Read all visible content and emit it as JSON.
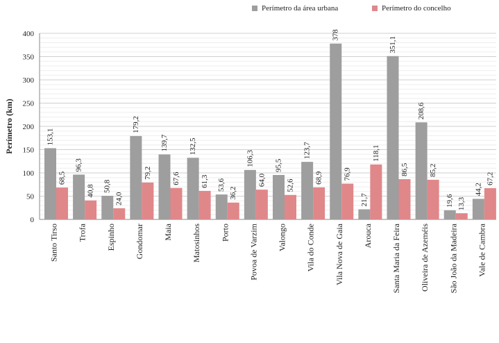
{
  "chart_data": {
    "type": "bar",
    "ylabel": "Perímetro (km)",
    "ylim": [
      0,
      400
    ],
    "yticks": [
      0,
      50,
      100,
      150,
      200,
      250,
      300,
      350,
      400
    ],
    "grid": true,
    "legend_position": "top-right",
    "categories": [
      "Santo Tirso",
      "Trofa",
      "Espinho",
      "Gondomar",
      "Maia",
      "Matosinhos",
      "Porto",
      "Povoa de Varzim",
      "Valongo",
      "Vila do Conde",
      "Vila Nova de Gaia",
      "Arouca",
      "Santa Maria da Feira",
      "Oliveira de Azeméis",
      "São João da Madeira",
      "Vale de Cambra"
    ],
    "series": [
      {
        "name": "Perímetro da área urbana",
        "color": "#9e9e9e",
        "values": [
          153.1,
          96.3,
          50.8,
          179.2,
          139.7,
          132.5,
          53.6,
          106.3,
          95.5,
          123.7,
          378,
          21.7,
          351.1,
          208.6,
          19.6,
          44.2
        ],
        "labels": [
          "153,1",
          "96,3",
          "50,8",
          "179,2",
          "139,7",
          "132,5",
          "53,6",
          "106,3",
          "95,5",
          "123,7",
          "378",
          "21,7",
          "351,1",
          "208,6",
          "19,6",
          "44,2"
        ]
      },
      {
        "name": "Perímetro do concelho",
        "color": "#e0878a",
        "values": [
          68.5,
          40.8,
          24.0,
          79.2,
          67.6,
          61.3,
          36.2,
          64.0,
          52.6,
          68.9,
          76.9,
          118.1,
          86.5,
          85.2,
          13.3,
          67.2
        ],
        "labels": [
          "68,5",
          "40,8",
          "24,0",
          "79,2",
          "67,6",
          "61,3",
          "36,2",
          "64,0",
          "52,6",
          "68,9",
          "76,9",
          "118,1",
          "86,5",
          "85,2",
          "13,3",
          "67,2"
        ]
      }
    ]
  }
}
